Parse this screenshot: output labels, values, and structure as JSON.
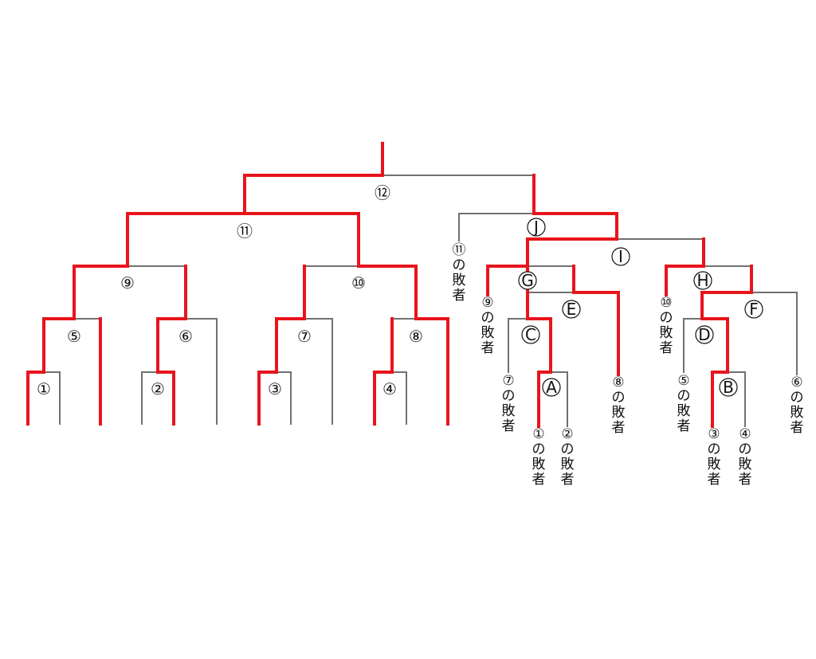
{
  "matches": {
    "m1": "①",
    "m2": "②",
    "m3": "③",
    "m4": "④",
    "m5": "⑤",
    "m6": "⑥",
    "m7": "⑦",
    "m8": "⑧",
    "m9": "⑨",
    "m10": "⑩",
    "m11": "⑪",
    "m12": "⑫",
    "A": "A",
    "B": "B",
    "C": "C",
    "D": "D",
    "E": "E",
    "F": "F",
    "G": "G",
    "H": "H",
    "I": "I",
    "J": "J"
  },
  "loser_labels": {
    "l11": [
      "⑪",
      "の",
      "敗",
      "者"
    ],
    "l9": [
      "⑨",
      "の",
      "敗",
      "者"
    ],
    "l10": [
      "⑩",
      "の",
      "敗",
      "者"
    ],
    "l7": [
      "⑦",
      "の",
      "敗",
      "者"
    ],
    "l1": [
      "①",
      "の",
      "敗",
      "者"
    ],
    "l2": [
      "②",
      "の",
      "敗",
      "者"
    ],
    "l8": [
      "⑧",
      "の",
      "敗",
      "者"
    ],
    "l5": [
      "⑤",
      "の",
      "敗",
      "者"
    ],
    "l3": [
      "③",
      "の",
      "敗",
      "者"
    ],
    "l4": [
      "④",
      "の",
      "敗",
      "者"
    ],
    "l6": [
      "⑥",
      "の",
      "敗",
      "者"
    ]
  },
  "colors": {
    "winner_path": "#e8141c",
    "bracket_line": "#707070"
  }
}
